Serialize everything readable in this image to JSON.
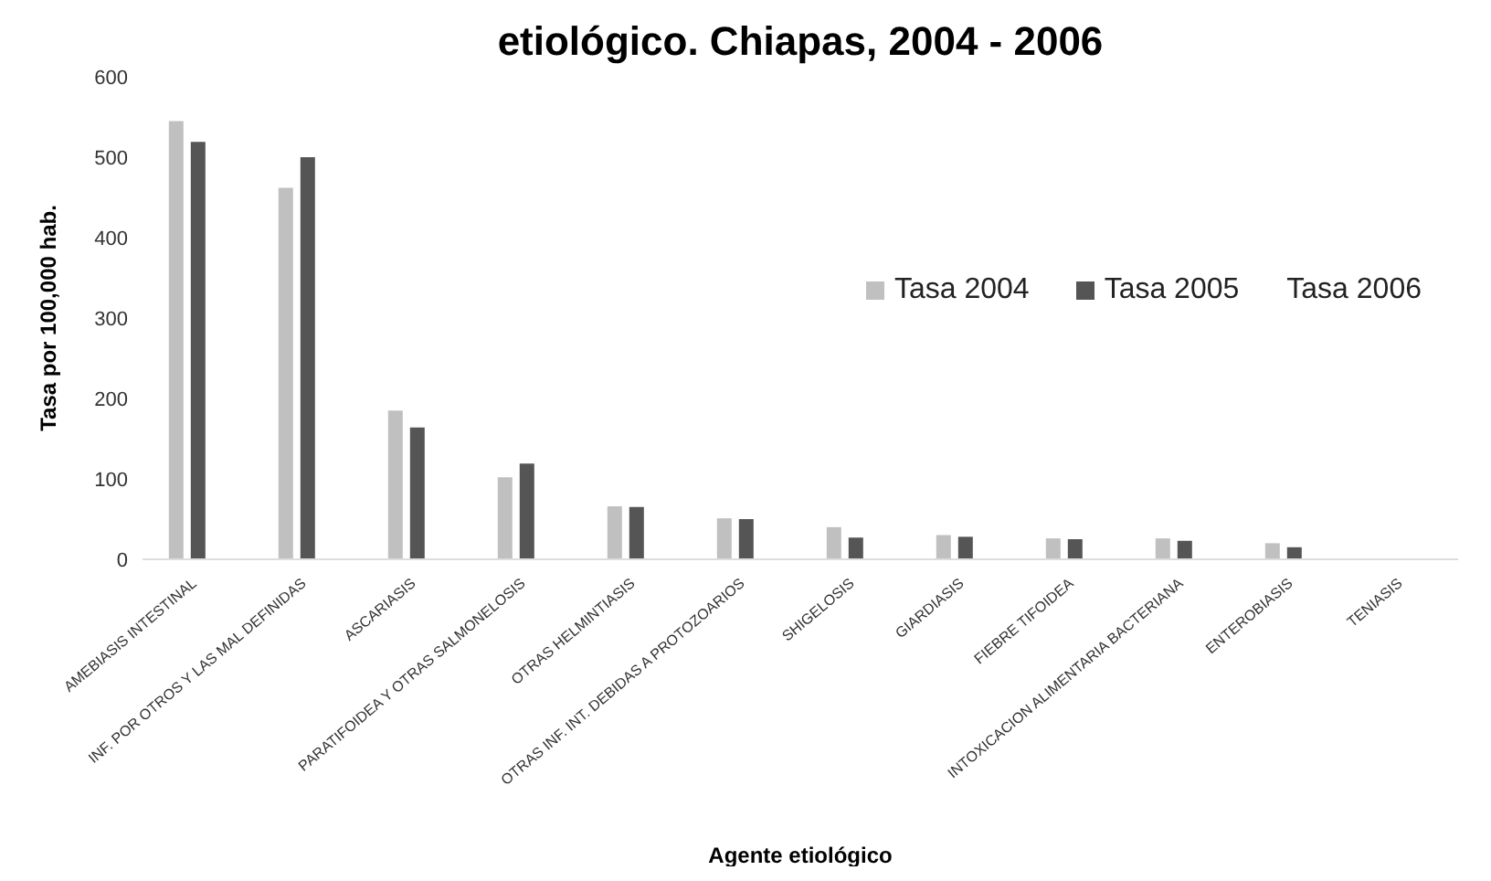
{
  "chart_data": {
    "type": "bar",
    "title": "etiológico. Chiapas, 2004 - 2006",
    "xlabel": "Agente etiológico",
    "ylabel": "Tasa por 100,000 hab.",
    "categories": [
      "AMEBIASIS INTESTINAL",
      "INF. POR OTROS Y LAS MAL DEFINIDAS",
      "ASCARIASIS",
      "PARATIFOIDEA Y OTRAS SALMONELOSIS",
      "OTRAS HELMINTIASIS",
      "OTRAS INF. INT. DEBIDAS A PROTOZOARIOS",
      "SHIGELOSIS",
      "GIARDIASIS",
      "FIEBRE TIFOIDEA",
      "INTOXICACION ALIMENTARIA  BACTERIANA",
      "ENTEROBIASIS",
      "TENIASIS"
    ],
    "series": [
      {
        "name": "Tasa 2004",
        "color": "#c0c0c0",
        "values": [
          545,
          462,
          185,
          102,
          66,
          51,
          40,
          30,
          26,
          26,
          20,
          null
        ]
      },
      {
        "name": "Tasa 2005",
        "color": "#555555",
        "values": [
          519,
          500,
          164,
          119,
          65,
          50,
          27,
          28,
          25,
          23,
          15,
          null
        ]
      },
      {
        "name": "Tasa 2006",
        "values": [
          null,
          null,
          null,
          null,
          null,
          null,
          null,
          null,
          null,
          null,
          null,
          null
        ]
      }
    ],
    "ylim": [
      0,
      600
    ],
    "yticks": [
      0,
      100,
      200,
      300,
      400,
      500,
      600
    ],
    "grid": false,
    "legend": "right"
  }
}
